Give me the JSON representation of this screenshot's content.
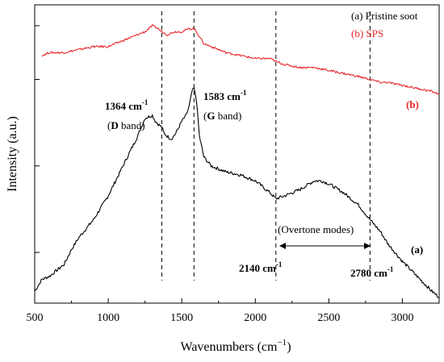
{
  "chart_data": {
    "type": "line",
    "xlabel": "Wavenumbers (cm",
    "xlabel_sup": "−1",
    "xlabel_close": ")",
    "ylabel": "Intensity (a.u.)",
    "xlim": [
      500,
      3250
    ],
    "ylim": [
      0,
      100
    ],
    "x_ticks": [
      500,
      1000,
      1500,
      2000,
      2500,
      3000
    ],
    "y_ticks_unlabeled": [
      17,
      46,
      75,
      93
    ],
    "grid": false,
    "legend_position": "top-right",
    "legend": [
      {
        "text": "(a) Pristine soot",
        "color": "#000000"
      },
      {
        "text": "(b) SPS",
        "color": "#e8262b"
      }
    ],
    "series": [
      {
        "name": "(a) Pristine soot",
        "color": "#000000",
        "label": "(a)",
        "x": [
          500,
          550,
          600,
          650,
          700,
          750,
          800,
          900,
          1000,
          1100,
          1200,
          1250,
          1300,
          1320,
          1340,
          1364,
          1380,
          1400,
          1430,
          1460,
          1500,
          1530,
          1550,
          1570,
          1583,
          1600,
          1620,
          1650,
          1700,
          1800,
          1900,
          2000,
          2050,
          2100,
          2140,
          2200,
          2300,
          2400,
          2450,
          2500,
          2600,
          2700,
          2780,
          2850,
          2900,
          3000,
          3100,
          3200,
          3250
        ],
        "y": [
          4,
          8,
          9,
          11,
          13,
          18,
          22,
          28,
          36,
          46,
          56,
          62,
          63,
          61,
          60,
          59,
          57,
          56,
          55,
          57,
          61,
          63,
          66,
          71,
          72,
          68,
          56,
          49,
          46,
          44,
          43,
          41,
          39,
          37,
          35,
          36,
          38,
          41,
          41,
          40,
          37,
          33,
          28,
          24,
          20,
          14,
          9,
          4,
          2
        ]
      },
      {
        "name": "(b) SPS",
        "color": "#e8262b",
        "label": "(b)",
        "x": [
          550,
          600,
          700,
          800,
          900,
          1000,
          1100,
          1200,
          1250,
          1300,
          1340,
          1364,
          1400,
          1450,
          1500,
          1550,
          1583,
          1600,
          1650,
          1700,
          1800,
          1900,
          2000,
          2100,
          2140,
          2200,
          2300,
          2400,
          2500,
          2600,
          2700,
          2780,
          2850,
          2900,
          3000,
          3100,
          3200,
          3250
        ],
        "y": [
          83,
          84,
          84,
          85,
          86,
          86,
          88,
          90,
          91,
          93,
          92,
          91,
          90,
          91,
          91,
          92,
          92,
          91,
          87,
          86,
          84,
          83,
          82,
          82,
          81,
          80,
          79,
          79,
          78,
          77,
          76,
          75,
          74,
          74,
          73,
          72,
          71,
          70
        ]
      }
    ],
    "reference_lines_x": [
      1364,
      1583,
      2140,
      2780
    ],
    "annotations": [
      {
        "id": "d",
        "line1": "1364 cm",
        "line1_sup": "-1",
        "line2_open": "(",
        "line2_bold": "D",
        "line2_rest": " band)"
      },
      {
        "id": "g",
        "line1": "1583 cm",
        "line1_sup": "-1",
        "line2_open": "(",
        "line2_bold": "G",
        "line2_rest": " band)"
      },
      {
        "id": "overtone",
        "text": "(Overtone modes)"
      },
      {
        "id": "p2140",
        "text": "2140 cm",
        "sup": "-1"
      },
      {
        "id": "p2780",
        "text": "2780 cm",
        "sup": "-1"
      }
    ]
  }
}
